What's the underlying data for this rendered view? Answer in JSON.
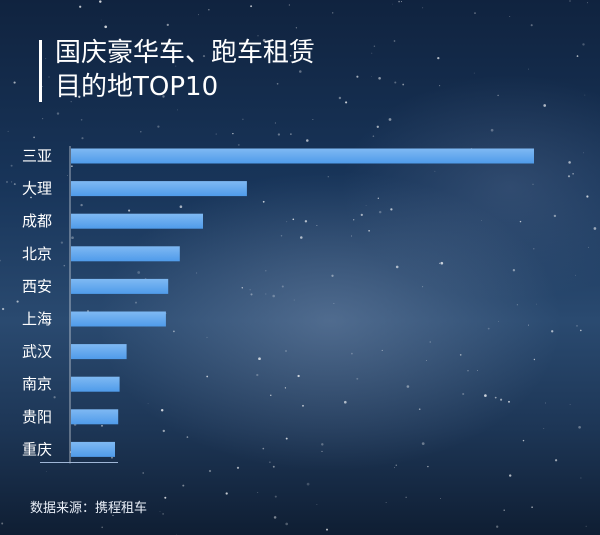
{
  "title_lines": [
    "国庆豪华车、跑车租赁",
    "目的地TOP10"
  ],
  "source": "数据来源：携程租车",
  "colors": {
    "bar": "#4f9bea",
    "bar_light": "#7fb9f3"
  },
  "chart_data": {
    "type": "bar",
    "orientation": "horizontal",
    "title": "国庆豪华车、跑车租赁目的地TOP10",
    "categories": [
      "三亚",
      "大理",
      "成都",
      "北京",
      "西安",
      "上海",
      "武汉",
      "南京",
      "贵阳",
      "重庆"
    ],
    "values": [
      100,
      38,
      28.5,
      23.5,
      21,
      20.5,
      12,
      10.5,
      10.2,
      9.5
    ],
    "xlim": [
      0,
      100
    ],
    "grid": false,
    "legend": "none"
  }
}
